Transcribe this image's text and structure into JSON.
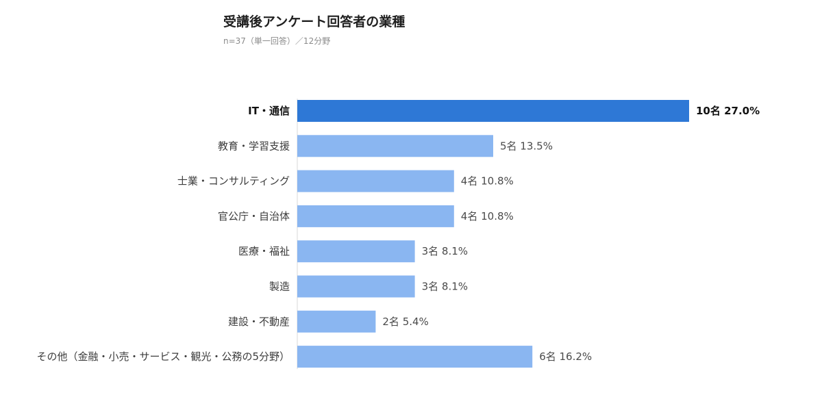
{
  "chart_data": {
    "type": "bar",
    "orientation": "horizontal",
    "title": "受講後アンケート回答者の業種",
    "subtitle": "n=37（単一回答）／12分野",
    "categories": [
      "IT・通信",
      "教育・学習支援",
      "士業・コンサルティング",
      "官公庁・自治体",
      "医療・福祉",
      "製造",
      "建設・不動産",
      "その他（金融・小売・サービス・観光・公務の5分野）"
    ],
    "values": [
      10,
      5,
      4,
      4,
      3,
      3,
      2,
      6
    ],
    "value_labels": [
      "10名 27.0%",
      "5名 13.5%",
      "4名 10.8%",
      "4名 10.8%",
      "3名 8.1%",
      "3名 8.1%",
      "2名 5.4%",
      "6名 16.2%"
    ],
    "highlight_index": 0,
    "xlim": [
      0,
      10
    ],
    "grid": false,
    "legend": "none",
    "colors": {
      "highlight": "#2e78d6",
      "bar": "#8ab6f1",
      "axis": "#d8d8d8"
    }
  }
}
